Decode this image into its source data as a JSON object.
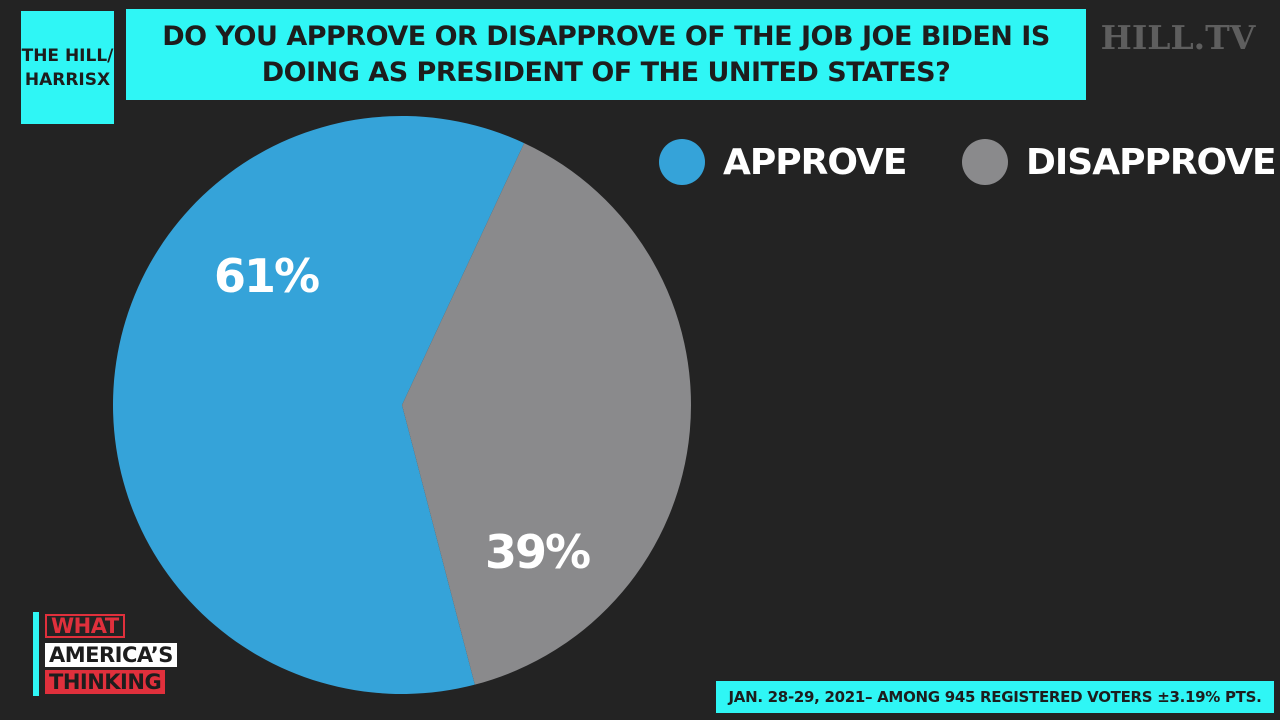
{
  "header": {
    "source_line_1": "THE HILL/",
    "source_line_2": "HARRISX",
    "question": "DO YOU APPROVE OR DISAPPROVE OF THE JOB JOE BIDEN IS DOING AS PRESIDENT OF THE UNITED STATES?",
    "network_logo": "HILL.TV"
  },
  "chart_data": {
    "type": "pie",
    "title": "DO YOU APPROVE OR DISAPPROVE OF THE JOB JOE BIDEN IS DOING AS PRESIDENT OF THE UNITED STATES?",
    "legend_placement": "top-right",
    "slices": [
      {
        "name": "APPROVE",
        "value": 61,
        "label": "61%",
        "color": "#35a3d9"
      },
      {
        "name": "DISAPPROVE",
        "value": 39,
        "label": "39%",
        "color": "#8a8a8c"
      }
    ]
  },
  "branding": {
    "line_1": "WHAT",
    "line_2": "AMERICA’S",
    "line_3": "THINKING"
  },
  "footnote": "JAN. 28-29, 2021– AMONG 945 REGISTERED VOTERS ±3.19% PTS.",
  "colors": {
    "background": "#232323",
    "accent": "#2ff6f5",
    "brand_red": "#e0303c"
  }
}
